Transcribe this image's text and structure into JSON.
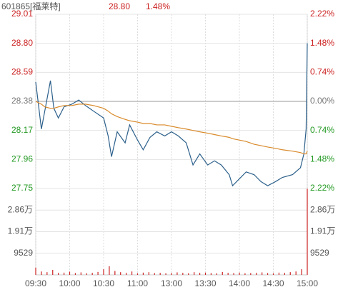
{
  "header": {
    "name": "601865[福莱特]",
    "price": "28.80",
    "change": "1.48%"
  },
  "chart_data": [
    {
      "type": "line",
      "up_color": "#cc2222",
      "down_color": "#229922",
      "flat_color": "#777777",
      "x": [
        0,
        5,
        8,
        13,
        16,
        20,
        25,
        32,
        38,
        44,
        51,
        60,
        64,
        67,
        72,
        79,
        83,
        90,
        95,
        101,
        107,
        114,
        120,
        126,
        133,
        139,
        145,
        152,
        158,
        164,
        171,
        174,
        180,
        186,
        193,
        199,
        205,
        212,
        218,
        227,
        234,
        237,
        239,
        240
      ],
      "xlim": [
        0,
        240
      ],
      "series": [
        {
          "name": "price",
          "color": "#2b5f8a",
          "values": [
            28.52,
            28.18,
            28.31,
            28.53,
            28.33,
            28.26,
            28.34,
            28.36,
            28.39,
            28.35,
            28.31,
            28.26,
            28.13,
            27.98,
            28.16,
            28.08,
            28.21,
            28.1,
            28.03,
            28.12,
            28.16,
            28.13,
            28.16,
            28.13,
            28.08,
            27.92,
            28.0,
            27.92,
            27.95,
            27.92,
            27.85,
            27.77,
            27.82,
            27.87,
            27.85,
            27.8,
            27.77,
            27.8,
            27.83,
            27.85,
            27.9,
            28.0,
            28.18,
            28.8
          ]
        },
        {
          "name": "average",
          "color": "#d98a2a",
          "values": [
            28.38,
            28.36,
            28.34,
            28.33,
            28.33,
            28.34,
            28.35,
            28.35,
            28.36,
            28.36,
            28.35,
            28.33,
            28.31,
            28.29,
            28.27,
            28.25,
            28.24,
            28.23,
            28.22,
            28.22,
            28.21,
            28.21,
            28.2,
            28.19,
            28.18,
            28.17,
            28.16,
            28.15,
            28.14,
            28.13,
            28.12,
            28.11,
            28.1,
            28.09,
            28.07,
            28.06,
            28.05,
            28.04,
            28.03,
            28.02,
            28.01,
            28.0,
            28.0,
            28.02
          ]
        }
      ],
      "ylim": [
        27.75,
        29.01
      ],
      "yticks": [
        27.75,
        27.96,
        28.17,
        28.38,
        {
          "value": 28.59,
          "label": "28.59"
        },
        {
          "value": 28.8,
          "label": "28.80"
        },
        29.01
      ],
      "y2lim": [
        -2.22,
        2.22
      ],
      "y2ticks": [
        {
          "value": -2.22,
          "label": "2.22%"
        },
        {
          "value": -1.48,
          "label": "1.48%"
        },
        {
          "value": -0.74,
          "label": "0.74%"
        },
        {
          "value": 0,
          "label": "0.00%"
        },
        {
          "value": 0.74,
          "label": "0.74%"
        },
        {
          "value": 1.48,
          "label": "1.48%"
        },
        {
          "value": 2.22,
          "label": "2.22%"
        }
      ],
      "grid": true
    },
    {
      "type": "bar",
      "color": "#cc2222",
      "x": [
        0,
        5,
        10,
        15,
        20,
        25,
        30,
        35,
        40,
        45,
        50,
        55,
        60,
        65,
        70,
        75,
        80,
        85,
        90,
        95,
        100,
        105,
        110,
        115,
        120,
        125,
        130,
        135,
        140,
        145,
        150,
        155,
        160,
        165,
        170,
        175,
        180,
        185,
        190,
        195,
        200,
        205,
        210,
        215,
        220,
        225,
        230,
        235,
        240
      ],
      "xlim": [
        0,
        240
      ],
      "values": [
        3200,
        1500,
        1200,
        2200,
        900,
        1000,
        1400,
        800,
        1100,
        700,
        900,
        1300,
        2500,
        3800,
        1700,
        1200,
        900,
        1500,
        700,
        1000,
        1200,
        800,
        900,
        700,
        800,
        1100,
        900,
        700,
        1200,
        900,
        1000,
        800,
        700,
        1300,
        900,
        800,
        1000,
        700,
        800,
        900,
        1100,
        800,
        700,
        1000,
        900,
        1200,
        1500,
        2500,
        38000
      ],
      "ylim": [
        0,
        38116
      ],
      "yticks": [
        9529,
        {
          "value": 19058,
          "label": "1.91万"
        },
        {
          "value": 28587,
          "label": "2.86万"
        }
      ],
      "y2ticks": [
        9529,
        {
          "value": 19058,
          "label": "1.91万"
        },
        {
          "value": 28587,
          "label": "2.86万"
        }
      ],
      "xticks": [
        {
          "value": 0,
          "label": "09:30"
        },
        {
          "value": 30,
          "label": "10:00"
        },
        {
          "value": 60,
          "label": "10:30"
        },
        {
          "value": 90,
          "label": "11:00"
        },
        {
          "value": 120,
          "label": "13:00"
        },
        {
          "value": 150,
          "label": "13:30"
        },
        {
          "value": 180,
          "label": "14:00"
        },
        {
          "value": 210,
          "label": "14:30"
        },
        {
          "value": 240,
          "label": "15:00"
        }
      ]
    }
  ]
}
